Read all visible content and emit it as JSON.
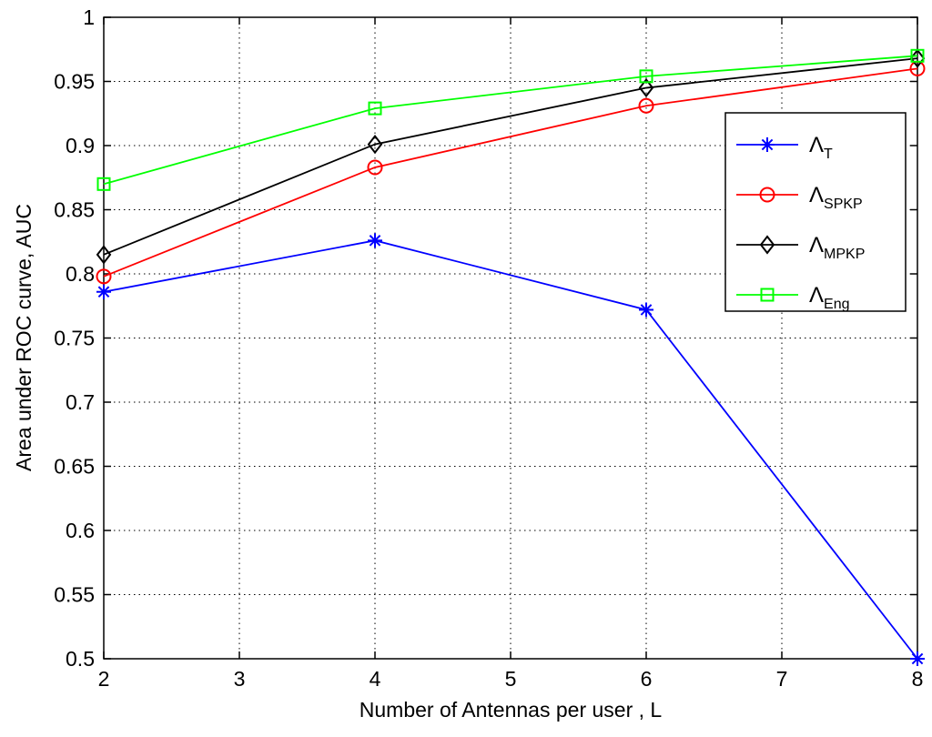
{
  "chart_data": {
    "type": "line",
    "title": "",
    "xlabel": "Number of Antennas per user , L",
    "ylabel": "Area under ROC curve, AUC",
    "xlim": [
      2,
      8
    ],
    "ylim": [
      0.5,
      1
    ],
    "xticks": [
      "2",
      "3",
      "4",
      "5",
      "6",
      "7",
      "8"
    ],
    "yticks": [
      "0.5",
      "0.55",
      "0.6",
      "0.65",
      "0.7",
      "0.75",
      "0.8",
      "0.85",
      "0.9",
      "0.95",
      "1"
    ],
    "grid": true,
    "legend_position": "right",
    "x": [
      2,
      4,
      6,
      8
    ],
    "series": [
      {
        "name": "Λ_T",
        "symbol": "Λ",
        "subscript": "T",
        "color": "#0000ff",
        "marker": "asterisk",
        "values": [
          0.786,
          0.826,
          0.772,
          0.5
        ]
      },
      {
        "name": "Λ_SPKP",
        "symbol": "Λ",
        "subscript": "SPKP",
        "color": "#ff0000",
        "marker": "circle",
        "values": [
          0.798,
          0.883,
          0.931,
          0.96
        ]
      },
      {
        "name": "Λ_MPKP",
        "symbol": "Λ",
        "subscript": "MPKP",
        "color": "#000000",
        "marker": "diamond",
        "values": [
          0.815,
          0.901,
          0.945,
          0.968
        ]
      },
      {
        "name": "Λ_Eng",
        "symbol": "Λ",
        "subscript": "Eng",
        "color": "#00ff00",
        "marker": "square",
        "values": [
          0.87,
          0.929,
          0.954,
          0.97
        ]
      }
    ]
  }
}
